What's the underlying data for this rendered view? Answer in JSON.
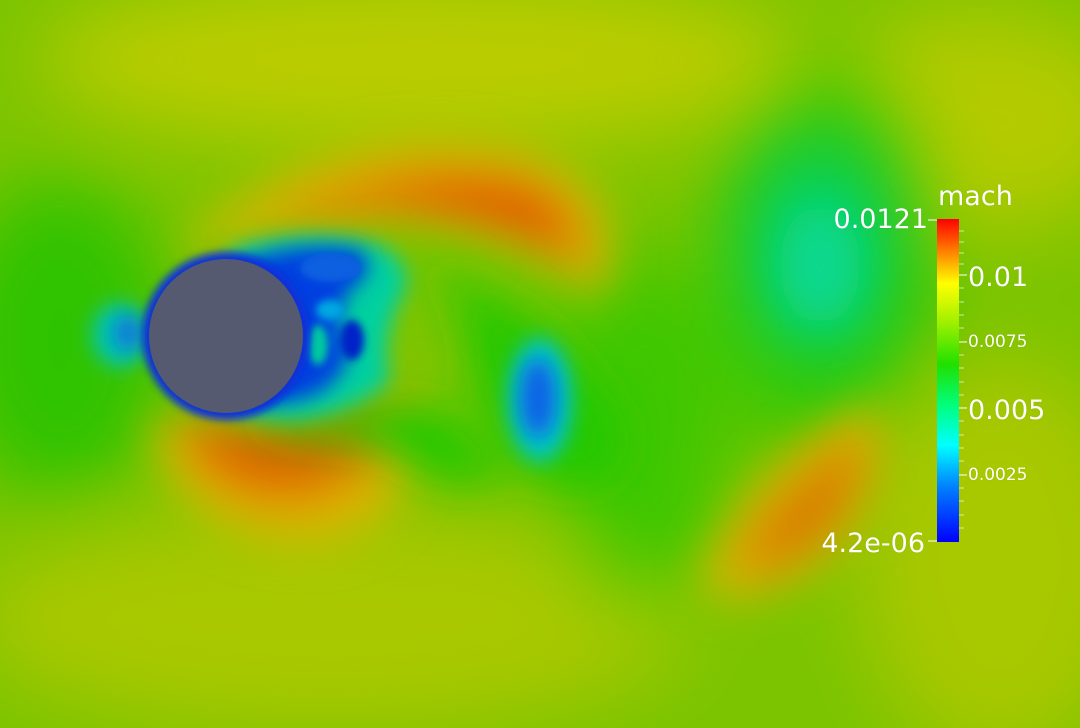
{
  "colorbar": {
    "title": "mach",
    "max_label": "0.0121",
    "min_label": "4.2e-06",
    "tick_labels": [
      "0.01",
      "0.0075",
      "0.005",
      "0.0025"
    ]
  },
  "colors": {
    "background": "#7cc400",
    "cylinder": "#555a70",
    "text": "#ffffff"
  }
}
